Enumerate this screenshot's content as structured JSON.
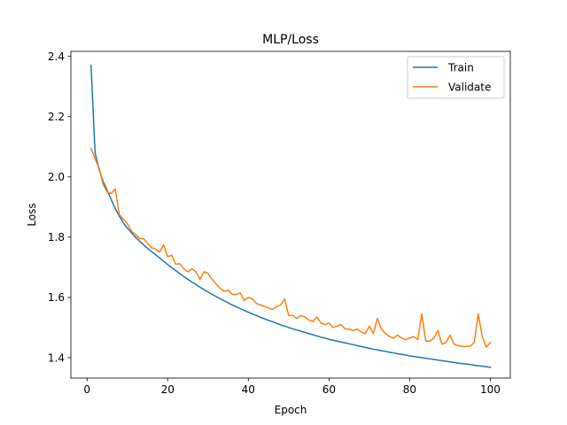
{
  "chart_data": {
    "type": "line",
    "title": "MLP/Loss",
    "xlabel": "Epoch",
    "ylabel": "Loss",
    "xlim": [
      -4,
      104.95
    ],
    "ylim": [
      1.3323,
      2.4167
    ],
    "x_ticks": [
      0,
      20,
      40,
      60,
      80,
      100
    ],
    "y_ticks": [
      1.4,
      1.6,
      1.8,
      2.0,
      2.2,
      2.4
    ],
    "x_tick_labels": [
      "0",
      "20",
      "40",
      "60",
      "80",
      "100"
    ],
    "y_tick_labels": [
      "1.4",
      "1.6",
      "1.8",
      "2.0",
      "2.2",
      "2.4"
    ],
    "grid": false,
    "legend_position": "top-right",
    "x": [
      1,
      2,
      3,
      4,
      5,
      6,
      7,
      8,
      9,
      10,
      11,
      12,
      13,
      14,
      15,
      16,
      17,
      18,
      19,
      20,
      21,
      22,
      23,
      24,
      25,
      26,
      27,
      28,
      29,
      30,
      31,
      32,
      33,
      34,
      35,
      36,
      37,
      38,
      39,
      40,
      41,
      42,
      43,
      44,
      45,
      46,
      47,
      48,
      49,
      50,
      51,
      52,
      53,
      54,
      55,
      56,
      57,
      58,
      59,
      60,
      61,
      62,
      63,
      64,
      65,
      66,
      67,
      68,
      69,
      70,
      71,
      72,
      73,
      74,
      75,
      76,
      77,
      78,
      79,
      80,
      81,
      82,
      83,
      84,
      85,
      86,
      87,
      88,
      89,
      90,
      91,
      92,
      93,
      94,
      95,
      96,
      97,
      98,
      99,
      100
    ],
    "series": [
      {
        "name": "Train",
        "color": "#1f77b4",
        "values": [
          2.37,
          2.08,
          2.025,
          1.985,
          1.955,
          1.925,
          1.895,
          1.87,
          1.848,
          1.83,
          1.815,
          1.8,
          1.787,
          1.775,
          1.763,
          1.752,
          1.742,
          1.731,
          1.72,
          1.709,
          1.699,
          1.689,
          1.679,
          1.669,
          1.66,
          1.651,
          1.643,
          1.634,
          1.626,
          1.618,
          1.61,
          1.603,
          1.596,
          1.589,
          1.582,
          1.575,
          1.569,
          1.563,
          1.557,
          1.551,
          1.545,
          1.54,
          1.534,
          1.529,
          1.524,
          1.519,
          1.514,
          1.509,
          1.505,
          1.5,
          1.496,
          1.492,
          1.488,
          1.484,
          1.48,
          1.476,
          1.472,
          1.468,
          1.465,
          1.461,
          1.458,
          1.455,
          1.452,
          1.449,
          1.446,
          1.443,
          1.44,
          1.437,
          1.434,
          1.431,
          1.428,
          1.426,
          1.423,
          1.421,
          1.418,
          1.416,
          1.413,
          1.411,
          1.409,
          1.406,
          1.404,
          1.402,
          1.4,
          1.398,
          1.396,
          1.394,
          1.392,
          1.39,
          1.388,
          1.386,
          1.384,
          1.382,
          1.38,
          1.379,
          1.377,
          1.375,
          1.373,
          1.372,
          1.37,
          1.368
        ]
      },
      {
        "name": "Validate",
        "color": "#ff7f0e",
        "values": [
          2.095,
          2.06,
          2.03,
          1.975,
          1.95,
          1.945,
          1.96,
          1.875,
          1.86,
          1.845,
          1.82,
          1.81,
          1.795,
          1.795,
          1.78,
          1.765,
          1.76,
          1.75,
          1.775,
          1.735,
          1.74,
          1.71,
          1.712,
          1.695,
          1.685,
          1.695,
          1.685,
          1.66,
          1.685,
          1.68,
          1.66,
          1.645,
          1.63,
          1.62,
          1.625,
          1.61,
          1.61,
          1.615,
          1.59,
          1.6,
          1.595,
          1.58,
          1.575,
          1.57,
          1.565,
          1.56,
          1.57,
          1.575,
          1.595,
          1.54,
          1.54,
          1.53,
          1.54,
          1.535,
          1.525,
          1.52,
          1.535,
          1.515,
          1.51,
          1.515,
          1.5,
          1.505,
          1.51,
          1.495,
          1.495,
          1.49,
          1.495,
          1.485,
          1.48,
          1.505,
          1.48,
          1.53,
          1.495,
          1.48,
          1.47,
          1.465,
          1.475,
          1.465,
          1.46,
          1.465,
          1.47,
          1.46,
          1.545,
          1.455,
          1.455,
          1.465,
          1.49,
          1.445,
          1.45,
          1.475,
          1.445,
          1.44,
          1.438,
          1.437,
          1.438,
          1.45,
          1.545,
          1.47,
          1.435,
          1.45
        ]
      }
    ]
  }
}
